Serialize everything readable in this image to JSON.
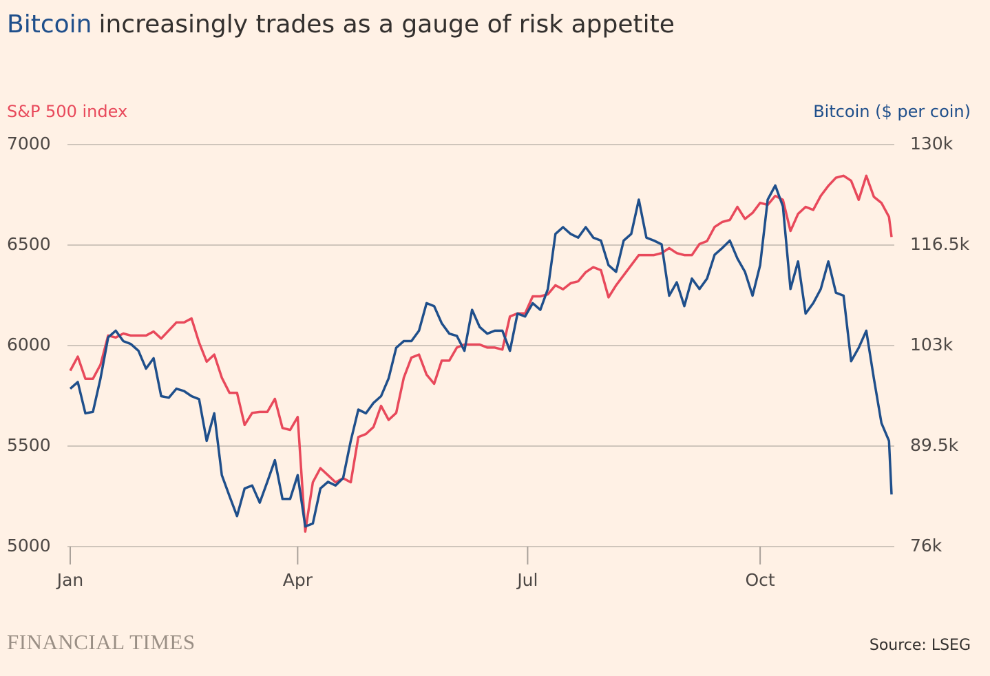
{
  "chart_data": {
    "type": "line",
    "title": [
      "Bitcoin",
      "increasingly trades as a gauge of risk appetite"
    ],
    "ylabel": "S&P 500 index",
    "y2label": "Bitcoin ($ per coin)",
    "source": "Source: LSEG",
    "publisher": "FINANCIAL TIMES",
    "xlim": [
      1,
      326
    ],
    "xticks": [
      {
        "value": 1,
        "label": "Jan"
      },
      {
        "value": 91,
        "label": "Apr"
      },
      {
        "value": 182,
        "label": "Jul"
      },
      {
        "value": 274,
        "label": "Oct"
      }
    ],
    "ylim": [
      5000,
      7000
    ],
    "yticks": [
      5000,
      5500,
      6000,
      6500,
      7000
    ],
    "y2lim": [
      76000,
      130000
    ],
    "y2ticks": [
      {
        "value": 76000,
        "label": "76k"
      },
      {
        "value": 89500,
        "label": "89.5k"
      },
      {
        "value": 103000,
        "label": "103k"
      },
      {
        "value": 116500,
        "label": "116.5k"
      },
      {
        "value": 130000,
        "label": "130k"
      }
    ],
    "grid": true,
    "x": [
      1,
      4,
      7,
      10,
      13,
      16,
      19,
      22,
      25,
      28,
      31,
      34,
      37,
      40,
      43,
      46,
      49,
      52,
      55,
      58,
      61,
      64,
      67,
      70,
      73,
      76,
      79,
      82,
      85,
      88,
      91,
      94,
      97,
      100,
      103,
      106,
      109,
      112,
      115,
      118,
      121,
      124,
      127,
      130,
      133,
      136,
      139,
      142,
      145,
      148,
      151,
      154,
      157,
      160,
      163,
      166,
      169,
      172,
      175,
      178,
      181,
      184,
      187,
      190,
      193,
      196,
      199,
      202,
      205,
      208,
      211,
      214,
      217,
      220,
      223,
      226,
      229,
      232,
      235,
      238,
      241,
      244,
      247,
      250,
      253,
      256,
      259,
      262,
      265,
      268,
      271,
      274,
      277,
      280,
      283,
      286,
      289,
      292,
      295,
      298,
      301,
      304,
      307,
      310,
      313,
      316,
      319,
      322,
      325,
      326
    ],
    "series": [
      {
        "name": "S&P 500 index",
        "color": "#e8495b",
        "axis": "y",
        "values": [
          5875,
          5945,
          5835,
          5835,
          5905,
          6050,
          6040,
          6060,
          6050,
          6050,
          6050,
          6070,
          6035,
          6075,
          6115,
          6115,
          6135,
          6015,
          5920,
          5955,
          5840,
          5765,
          5765,
          5605,
          5665,
          5670,
          5670,
          5735,
          5590,
          5580,
          5645,
          5075,
          5320,
          5390,
          5355,
          5320,
          5340,
          5320,
          5545,
          5560,
          5595,
          5700,
          5630,
          5665,
          5840,
          5940,
          5955,
          5855,
          5810,
          5925,
          5925,
          5990,
          6005,
          6005,
          6005,
          5990,
          5990,
          5980,
          6145,
          6160,
          6160,
          6245,
          6245,
          6255,
          6300,
          6280,
          6310,
          6320,
          6365,
          6390,
          6375,
          6240,
          6300,
          6350,
          6400,
          6450,
          6450,
          6450,
          6460,
          6485,
          6460,
          6450,
          6450,
          6505,
          6520,
          6590,
          6615,
          6625,
          6690,
          6630,
          6660,
          6710,
          6700,
          6745,
          6725,
          6570,
          6655,
          6690,
          6675,
          6745,
          6795,
          6835,
          6845,
          6820,
          6725,
          6845,
          6740,
          6710,
          6640,
          6540
        ]
      },
      {
        "name": "Bitcoin ($ per coin)",
        "color": "#1f4f8b",
        "axis": "y2",
        "values": [
          97200,
          98100,
          93900,
          94100,
          98600,
          104100,
          105000,
          103600,
          103200,
          102300,
          99900,
          101300,
          96200,
          96000,
          97200,
          96900,
          96200,
          95800,
          90200,
          93900,
          85600,
          82800,
          80100,
          83800,
          84200,
          81900,
          84700,
          87600,
          82400,
          82400,
          85600,
          78700,
          79100,
          83800,
          84700,
          84200,
          85200,
          90200,
          94400,
          93900,
          95300,
          96200,
          98600,
          102700,
          103600,
          103600,
          105000,
          108700,
          108300,
          106000,
          104600,
          104300,
          102300,
          107800,
          105500,
          104600,
          105000,
          105000,
          102300,
          107300,
          106900,
          108700,
          107800,
          110600,
          118000,
          118900,
          118000,
          117500,
          118900,
          117500,
          117100,
          113800,
          112900,
          117100,
          118000,
          122600,
          117500,
          117100,
          116600,
          109700,
          111500,
          108300,
          112000,
          110600,
          112000,
          115200,
          116100,
          117100,
          114700,
          112900,
          109700,
          113800,
          122600,
          124500,
          121700,
          110600,
          114300,
          107300,
          108700,
          110600,
          114300,
          110100,
          109700,
          100900,
          102700,
          105000,
          98600,
          92600,
          90200,
          83000
        ]
      }
    ]
  }
}
